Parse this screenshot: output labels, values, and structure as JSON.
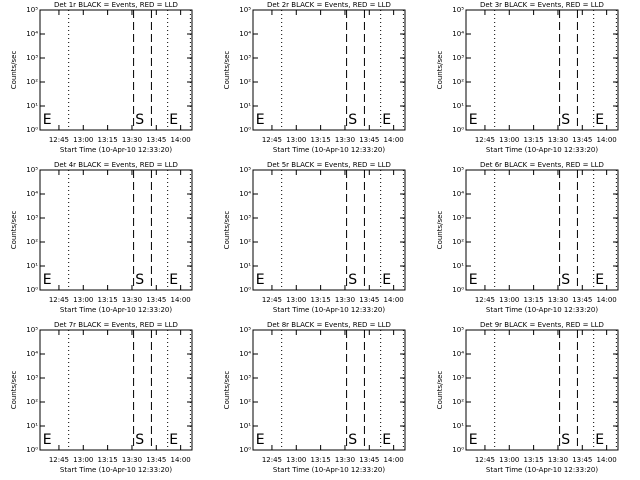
{
  "chart_data": [
    {
      "type": "line",
      "title": "Det 1r BLACK = Events, RED = LLD",
      "xlabel": "Start Time (10-Apr-10 12:33:20)",
      "ylabel": "Counts/sec",
      "log_y": true,
      "xlim": [
        753.33,
        847
      ],
      "ylim": [
        1,
        100000
      ],
      "xticks": [
        {
          "value": 765,
          "label": "12:45"
        },
        {
          "value": 780,
          "label": "13:00"
        },
        {
          "value": 795,
          "label": "13:15"
        },
        {
          "value": 810,
          "label": "13:30"
        },
        {
          "value": 825,
          "label": "13:45"
        },
        {
          "value": 840,
          "label": "14:00"
        }
      ],
      "yticks": [
        {
          "value": 1,
          "label": "10⁰"
        },
        {
          "value": 10,
          "label": "10¹"
        },
        {
          "value": 100,
          "label": "10²"
        },
        {
          "value": 1000,
          "label": "10³"
        },
        {
          "value": 10000,
          "label": "10⁴"
        },
        {
          "value": 100000,
          "label": "10⁵"
        }
      ],
      "vlines": [
        {
          "x": 771,
          "style": "dotted"
        },
        {
          "x": 811,
          "style": "dashed"
        },
        {
          "x": 822,
          "style": "dashed"
        },
        {
          "x": 832,
          "style": "dotted"
        },
        {
          "x": 846,
          "style": "dotted"
        }
      ],
      "annotations": [
        {
          "text": "E",
          "x": 755
        },
        {
          "text": "S",
          "x": 812
        },
        {
          "text": "E",
          "x": 833
        }
      ]
    },
    {
      "type": "line",
      "title": "Det 2r BLACK = Events, RED = LLD",
      "xlabel": "Start Time (10-Apr-10 12:33:20)",
      "ylabel": "Counts/sec",
      "log_y": true,
      "xlim": [
        753.33,
        847
      ],
      "ylim": [
        1,
        100000
      ],
      "xticks": [
        {
          "value": 765,
          "label": "12:45"
        },
        {
          "value": 780,
          "label": "13:00"
        },
        {
          "value": 795,
          "label": "13:15"
        },
        {
          "value": 810,
          "label": "13:30"
        },
        {
          "value": 825,
          "label": "13:45"
        },
        {
          "value": 840,
          "label": "14:00"
        }
      ],
      "yticks": [
        {
          "value": 1,
          "label": "10⁰"
        },
        {
          "value": 10,
          "label": "10¹"
        },
        {
          "value": 100,
          "label": "10²"
        },
        {
          "value": 1000,
          "label": "10³"
        },
        {
          "value": 10000,
          "label": "10⁴"
        },
        {
          "value": 100000,
          "label": "10⁵"
        }
      ],
      "vlines": [
        {
          "x": 771,
          "style": "dotted"
        },
        {
          "x": 811,
          "style": "dashed"
        },
        {
          "x": 822,
          "style": "dashed"
        },
        {
          "x": 832,
          "style": "dotted"
        },
        {
          "x": 846,
          "style": "dotted"
        }
      ],
      "annotations": [
        {
          "text": "E",
          "x": 755
        },
        {
          "text": "S",
          "x": 812
        },
        {
          "text": "E",
          "x": 833
        }
      ]
    },
    {
      "type": "line",
      "title": "Det 3r BLACK = Events, RED = LLD",
      "xlabel": "Start Time (10-Apr-10 12:33:20)",
      "ylabel": "Counts/sec",
      "log_y": true,
      "xlim": [
        753.33,
        847
      ],
      "ylim": [
        1,
        100000
      ],
      "xticks": [
        {
          "value": 765,
          "label": "12:45"
        },
        {
          "value": 780,
          "label": "13:00"
        },
        {
          "value": 795,
          "label": "13:15"
        },
        {
          "value": 810,
          "label": "13:30"
        },
        {
          "value": 825,
          "label": "13:45"
        },
        {
          "value": 840,
          "label": "14:00"
        }
      ],
      "yticks": [
        {
          "value": 1,
          "label": "10⁰"
        },
        {
          "value": 10,
          "label": "10¹"
        },
        {
          "value": 100,
          "label": "10²"
        },
        {
          "value": 1000,
          "label": "10³"
        },
        {
          "value": 10000,
          "label": "10⁴"
        },
        {
          "value": 100000,
          "label": "10⁵"
        }
      ],
      "vlines": [
        {
          "x": 771,
          "style": "dotted"
        },
        {
          "x": 811,
          "style": "dashed"
        },
        {
          "x": 822,
          "style": "dashed"
        },
        {
          "x": 832,
          "style": "dotted"
        },
        {
          "x": 846,
          "style": "dotted"
        }
      ],
      "annotations": [
        {
          "text": "E",
          "x": 755
        },
        {
          "text": "S",
          "x": 812
        },
        {
          "text": "E",
          "x": 833
        }
      ]
    },
    {
      "type": "line",
      "title": "Det 4r BLACK = Events, RED = LLD",
      "xlabel": "Start Time (10-Apr-10 12:33:20)",
      "ylabel": "Counts/sec",
      "log_y": true,
      "xlim": [
        753.33,
        847
      ],
      "ylim": [
        1,
        100000
      ],
      "xticks": [
        {
          "value": 765,
          "label": "12:45"
        },
        {
          "value": 780,
          "label": "13:00"
        },
        {
          "value": 795,
          "label": "13:15"
        },
        {
          "value": 810,
          "label": "13:30"
        },
        {
          "value": 825,
          "label": "13:45"
        },
        {
          "value": 840,
          "label": "14:00"
        }
      ],
      "yticks": [
        {
          "value": 1,
          "label": "10⁰"
        },
        {
          "value": 10,
          "label": "10¹"
        },
        {
          "value": 100,
          "label": "10²"
        },
        {
          "value": 1000,
          "label": "10³"
        },
        {
          "value": 10000,
          "label": "10⁴"
        },
        {
          "value": 100000,
          "label": "10⁵"
        }
      ],
      "vlines": [
        {
          "x": 771,
          "style": "dotted"
        },
        {
          "x": 811,
          "style": "dashed"
        },
        {
          "x": 822,
          "style": "dashed"
        },
        {
          "x": 832,
          "style": "dotted"
        },
        {
          "x": 846,
          "style": "dotted"
        }
      ],
      "annotations": [
        {
          "text": "E",
          "x": 755
        },
        {
          "text": "S",
          "x": 812
        },
        {
          "text": "E",
          "x": 833
        }
      ]
    },
    {
      "type": "line",
      "title": "Det 5r BLACK = Events, RED = LLD",
      "xlabel": "Start Time (10-Apr-10 12:33:20)",
      "ylabel": "Counts/sec",
      "log_y": true,
      "xlim": [
        753.33,
        847
      ],
      "ylim": [
        1,
        100000
      ],
      "xticks": [
        {
          "value": 765,
          "label": "12:45"
        },
        {
          "value": 780,
          "label": "13:00"
        },
        {
          "value": 795,
          "label": "13:15"
        },
        {
          "value": 810,
          "label": "13:30"
        },
        {
          "value": 825,
          "label": "13:45"
        },
        {
          "value": 840,
          "label": "14:00"
        }
      ],
      "yticks": [
        {
          "value": 1,
          "label": "10⁰"
        },
        {
          "value": 10,
          "label": "10¹"
        },
        {
          "value": 100,
          "label": "10²"
        },
        {
          "value": 1000,
          "label": "10³"
        },
        {
          "value": 10000,
          "label": "10⁴"
        },
        {
          "value": 100000,
          "label": "10⁵"
        }
      ],
      "vlines": [
        {
          "x": 771,
          "style": "dotted"
        },
        {
          "x": 811,
          "style": "dashed"
        },
        {
          "x": 822,
          "style": "dashed"
        },
        {
          "x": 832,
          "style": "dotted"
        },
        {
          "x": 846,
          "style": "dotted"
        }
      ],
      "annotations": [
        {
          "text": "E",
          "x": 755
        },
        {
          "text": "S",
          "x": 812
        },
        {
          "text": "E",
          "x": 833
        }
      ]
    },
    {
      "type": "line",
      "title": "Det 6r BLACK = Events, RED = LLD",
      "xlabel": "Start Time (10-Apr-10 12:33:20)",
      "ylabel": "Counts/sec",
      "log_y": true,
      "xlim": [
        753.33,
        847
      ],
      "ylim": [
        1,
        100000
      ],
      "xticks": [
        {
          "value": 765,
          "label": "12:45"
        },
        {
          "value": 780,
          "label": "13:00"
        },
        {
          "value": 795,
          "label": "13:15"
        },
        {
          "value": 810,
          "label": "13:30"
        },
        {
          "value": 825,
          "label": "13:45"
        },
        {
          "value": 840,
          "label": "14:00"
        }
      ],
      "yticks": [
        {
          "value": 1,
          "label": "10⁰"
        },
        {
          "value": 10,
          "label": "10¹"
        },
        {
          "value": 100,
          "label": "10²"
        },
        {
          "value": 1000,
          "label": "10³"
        },
        {
          "value": 10000,
          "label": "10⁴"
        },
        {
          "value": 100000,
          "label": "10⁵"
        }
      ],
      "vlines": [
        {
          "x": 771,
          "style": "dotted"
        },
        {
          "x": 811,
          "style": "dashed"
        },
        {
          "x": 822,
          "style": "dashed"
        },
        {
          "x": 832,
          "style": "dotted"
        },
        {
          "x": 846,
          "style": "dotted"
        }
      ],
      "annotations": [
        {
          "text": "E",
          "x": 755
        },
        {
          "text": "S",
          "x": 812
        },
        {
          "text": "E",
          "x": 833
        }
      ]
    },
    {
      "type": "line",
      "title": "Det 7r BLACK = Events, RED = LLD",
      "xlabel": "Start Time (10-Apr-10 12:33:20)",
      "ylabel": "Counts/sec",
      "log_y": true,
      "xlim": [
        753.33,
        847
      ],
      "ylim": [
        1,
        100000
      ],
      "xticks": [
        {
          "value": 765,
          "label": "12:45"
        },
        {
          "value": 780,
          "label": "13:00"
        },
        {
          "value": 795,
          "label": "13:15"
        },
        {
          "value": 810,
          "label": "13:30"
        },
        {
          "value": 825,
          "label": "13:45"
        },
        {
          "value": 840,
          "label": "14:00"
        }
      ],
      "yticks": [
        {
          "value": 1,
          "label": "10⁰"
        },
        {
          "value": 10,
          "label": "10¹"
        },
        {
          "value": 100,
          "label": "10²"
        },
        {
          "value": 1000,
          "label": "10³"
        },
        {
          "value": 10000,
          "label": "10⁴"
        },
        {
          "value": 100000,
          "label": "10⁵"
        }
      ],
      "vlines": [
        {
          "x": 771,
          "style": "dotted"
        },
        {
          "x": 811,
          "style": "dashed"
        },
        {
          "x": 822,
          "style": "dashed"
        },
        {
          "x": 832,
          "style": "dotted"
        },
        {
          "x": 846,
          "style": "dotted"
        }
      ],
      "annotations": [
        {
          "text": "E",
          "x": 755
        },
        {
          "text": "S",
          "x": 812
        },
        {
          "text": "E",
          "x": 833
        }
      ]
    },
    {
      "type": "line",
      "title": "Det 8r BLACK = Events, RED = LLD",
      "xlabel": "Start Time (10-Apr-10 12:33:20)",
      "ylabel": "Counts/sec",
      "log_y": true,
      "xlim": [
        753.33,
        847
      ],
      "ylim": [
        1,
        100000
      ],
      "xticks": [
        {
          "value": 765,
          "label": "12:45"
        },
        {
          "value": 780,
          "label": "13:00"
        },
        {
          "value": 795,
          "label": "13:15"
        },
        {
          "value": 810,
          "label": "13:30"
        },
        {
          "value": 825,
          "label": "13:45"
        },
        {
          "value": 840,
          "label": "14:00"
        }
      ],
      "yticks": [
        {
          "value": 1,
          "label": "10⁰"
        },
        {
          "value": 10,
          "label": "10¹"
        },
        {
          "value": 100,
          "label": "10²"
        },
        {
          "value": 1000,
          "label": "10³"
        },
        {
          "value": 10000,
          "label": "10⁴"
        },
        {
          "value": 100000,
          "label": "10⁵"
        }
      ],
      "vlines": [
        {
          "x": 771,
          "style": "dotted"
        },
        {
          "x": 811,
          "style": "dashed"
        },
        {
          "x": 822,
          "style": "dashed"
        },
        {
          "x": 832,
          "style": "dotted"
        },
        {
          "x": 846,
          "style": "dotted"
        }
      ],
      "annotations": [
        {
          "text": "E",
          "x": 755
        },
        {
          "text": "S",
          "x": 812
        },
        {
          "text": "E",
          "x": 833
        }
      ]
    },
    {
      "type": "line",
      "title": "Det 9r BLACK = Events, RED = LLD",
      "xlabel": "Start Time (10-Apr-10 12:33:20)",
      "ylabel": "Counts/sec",
      "log_y": true,
      "xlim": [
        753.33,
        847
      ],
      "ylim": [
        1,
        100000
      ],
      "xticks": [
        {
          "value": 765,
          "label": "12:45"
        },
        {
          "value": 780,
          "label": "13:00"
        },
        {
          "value": 795,
          "label": "13:15"
        },
        {
          "value": 810,
          "label": "13:30"
        },
        {
          "value": 825,
          "label": "13:45"
        },
        {
          "value": 840,
          "label": "14:00"
        }
      ],
      "yticks": [
        {
          "value": 1,
          "label": "10⁰"
        },
        {
          "value": 10,
          "label": "10¹"
        },
        {
          "value": 100,
          "label": "10²"
        },
        {
          "value": 1000,
          "label": "10³"
        },
        {
          "value": 10000,
          "label": "10⁴"
        },
        {
          "value": 100000,
          "label": "10⁵"
        }
      ],
      "vlines": [
        {
          "x": 771,
          "style": "dotted"
        },
        {
          "x": 811,
          "style": "dashed"
        },
        {
          "x": 822,
          "style": "dashed"
        },
        {
          "x": 832,
          "style": "dotted"
        },
        {
          "x": 846,
          "style": "dotted"
        }
      ],
      "annotations": [
        {
          "text": "E",
          "x": 755
        },
        {
          "text": "S",
          "x": 812
        },
        {
          "text": "E",
          "x": 833
        }
      ]
    }
  ]
}
